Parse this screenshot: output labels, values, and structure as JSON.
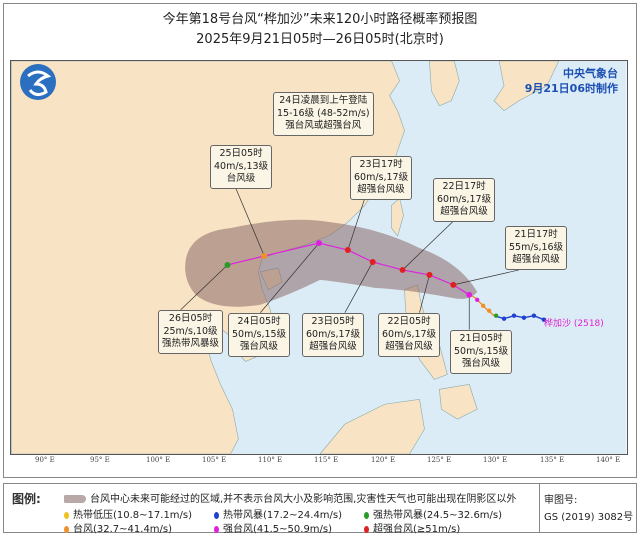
{
  "title": "今年第18号台风“桦加沙”未来120小时路径概率预报图",
  "subtitle": "2025年9月21日05时—26日05时(北京时)",
  "agency": {
    "name": "中央气象台",
    "issued": "9月21日06时制作"
  },
  "typhoon_label": "桦加沙 (2518)",
  "longitudes": [
    "90° E",
    "95° E",
    "100° E",
    "105° E",
    "110° E",
    "115° E",
    "120° E",
    "125° E",
    "130° E",
    "135° E",
    "140° E"
  ],
  "forecast_points": [
    {
      "time": "21日05时",
      "line2": "50m/s,15级",
      "line3": "强台风级",
      "color": "#e020e0"
    },
    {
      "time": "21日17时",
      "line2": "55m/s,16级",
      "line3": "超强台风级",
      "color": "#e02020"
    },
    {
      "time": "22日05时",
      "line2": "60m/s,17级",
      "line3": "超强台风级",
      "color": "#e02020"
    },
    {
      "time": "22日17时",
      "line2": "60m/s,17级",
      "line3": "超强台风级",
      "color": "#e02020"
    },
    {
      "time": "23日05时",
      "line2": "60m/s,17级",
      "line3": "超强台风级",
      "color": "#e02020"
    },
    {
      "time": "23日17时",
      "line2": "60m/s,17级",
      "line3": "超强台风级",
      "color": "#e02020"
    },
    {
      "time": "24日05时",
      "line2": "50m/s,15级",
      "line3": "强台风级",
      "color": "#e020e0"
    },
    {
      "time": "25日05时",
      "line2": "40m/s,13级",
      "line3": "台风级",
      "color": "#f0902a"
    },
    {
      "time": "26日05时",
      "line2": "25m/s,10级",
      "line3": "强热带风暴级",
      "color": "#2a9a2a"
    }
  ],
  "landfall": {
    "line1": "24日凌晨到上午登陆",
    "line2": "15-16级 (48-52m/s)",
    "line3": "强台风或超强台风"
  },
  "legend": {
    "title": "图例:",
    "cone": "台风中心未来可能经过的区域,并不表示台风大小及影响范围,灾害性天气也可能出现在阴影区以外",
    "items": [
      {
        "label": "热带低压(10.8~17.1m/s)",
        "color": "#f0c020"
      },
      {
        "label": "热带风暴(17.2~24.4m/s)",
        "color": "#2040d0"
      },
      {
        "label": "强热带风暴(24.5~32.6m/s)",
        "color": "#2a9a2a"
      },
      {
        "label": "台风(32.7~41.4m/s)",
        "color": "#f0902a"
      },
      {
        "label": "强台风(41.5~50.9m/s)",
        "color": "#e020e0"
      },
      {
        "label": "超强台风(≥51m/s)",
        "color": "#e02020"
      }
    ],
    "review_label": "审图号:",
    "review_no": "GS (2019) 3082号"
  }
}
